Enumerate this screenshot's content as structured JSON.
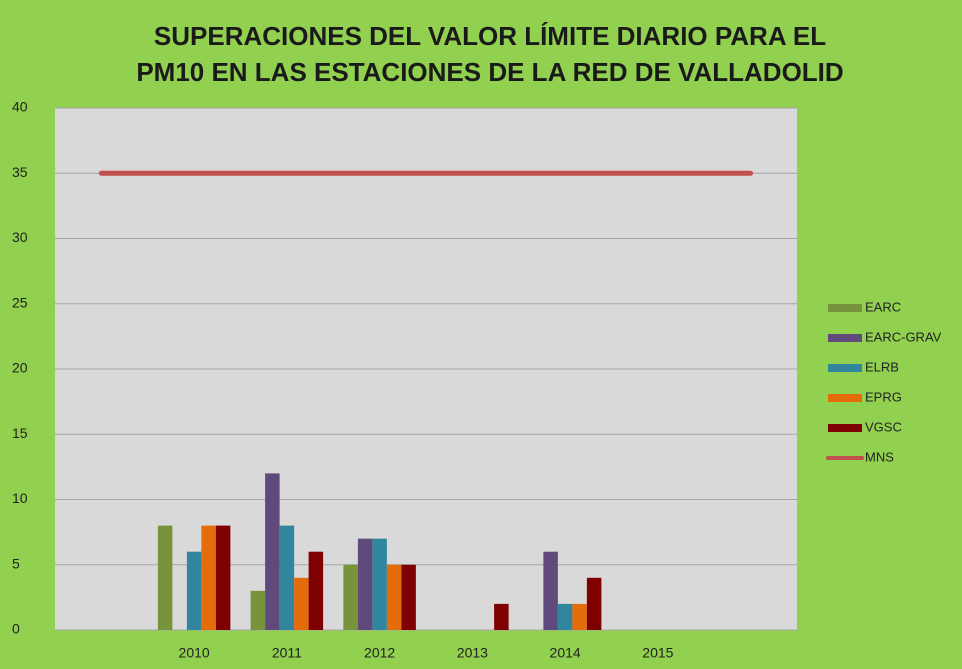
{
  "chart_data": {
    "type": "bar",
    "title": [
      "SUPERACIONES DEL VALOR LÍMITE DIARIO PARA EL",
      "PM10 EN LAS ESTACIONES DE LA RED DE VALLADOLID"
    ],
    "categories": [
      null,
      "2010",
      "2011",
      "2012",
      "2013",
      "2014",
      "2015",
      null
    ],
    "series": [
      {
        "name": "EARC",
        "color": "#77933c",
        "values": [
          null,
          8,
          3,
          5,
          0,
          0,
          0,
          null
        ]
      },
      {
        "name": "EARC-GRAV",
        "color": "#604a7b",
        "values": [
          null,
          0,
          12,
          7,
          0,
          6,
          0,
          null
        ]
      },
      {
        "name": "ELRB",
        "color": "#31859c",
        "values": [
          null,
          6,
          8,
          7,
          0,
          2,
          0,
          null
        ]
      },
      {
        "name": "EPRG",
        "color": "#e46c0a",
        "values": [
          null,
          8,
          4,
          5,
          0,
          2,
          0,
          null
        ]
      },
      {
        "name": "VGSC",
        "color": "#7f0000",
        "values": [
          null,
          8,
          6,
          5,
          2,
          4,
          0,
          null
        ]
      },
      {
        "name": "MNS",
        "color": "#c0504d",
        "type": "line",
        "values": [
          35,
          35,
          35,
          35,
          35,
          35,
          35,
          35
        ]
      }
    ],
    "ylim": [
      0,
      40
    ],
    "yticks": [
      0,
      5,
      10,
      15,
      20,
      25,
      30,
      35,
      40
    ],
    "grid": true,
    "legend": "right"
  }
}
